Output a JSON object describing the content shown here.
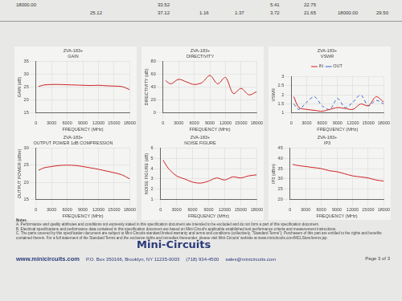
{
  "header_table": {
    "rows": [
      [
        "18000.00",
        null,
        "33.52",
        null,
        null,
        "5.41",
        "22.75",
        null,
        null
      ],
      [
        null,
        "25.12",
        "37.12",
        "1.16",
        "1.37",
        "3.72",
        "21.65",
        "18000.00",
        "29.50"
      ]
    ]
  },
  "chart_data": [
    {
      "type": "line",
      "title": "ZVA-183+",
      "subtitle": "GAIN",
      "x_label": "FREQUENCY (MHz)",
      "y_label": "GAIN (dB)",
      "x": [
        500,
        1500,
        3000,
        4500,
        6000,
        7500,
        9000,
        10500,
        12000,
        13500,
        15000,
        16500,
        18000
      ],
      "values": [
        25.2,
        25.8,
        26.0,
        26.0,
        25.9,
        25.8,
        25.7,
        25.6,
        25.7,
        25.5,
        25.4,
        25.2,
        24.0
      ],
      "color": "#cc2222",
      "xlim": [
        0,
        18000
      ],
      "xticks": [
        0,
        3000,
        6000,
        9000,
        12000,
        15000,
        18000
      ],
      "ylim": [
        15,
        35
      ],
      "yticks": [
        15,
        20,
        25,
        30,
        35
      ],
      "grid": true
    },
    {
      "type": "line",
      "title": "ZVA-183+",
      "subtitle": "DIRECTIVITY",
      "x_label": "FREQUENCY (MHz)",
      "y_label": "DIRECTIVITY (dB)",
      "x": [
        500,
        1500,
        3000,
        4500,
        6000,
        7500,
        9000,
        10500,
        12000,
        13500,
        15000,
        16500,
        18000
      ],
      "values": [
        50,
        45,
        52,
        48,
        44,
        47,
        58,
        45,
        55,
        30,
        38,
        28,
        33
      ],
      "color": "#cc2222",
      "xlim": [
        0,
        18000
      ],
      "xticks": [
        0,
        3000,
        6000,
        9000,
        12000,
        15000,
        18000
      ],
      "ylim": [
        0,
        80
      ],
      "yticks": [
        0,
        20,
        40,
        60,
        80
      ],
      "grid": true
    },
    {
      "type": "line",
      "title": "ZVA-183+",
      "subtitle": "VSWR",
      "x_label": "FREQUENCY (MHz)",
      "y_label": "VSWR",
      "x": [
        500,
        1500,
        3000,
        4500,
        6000,
        7500,
        9000,
        10500,
        12000,
        13500,
        15000,
        16500,
        18000
      ],
      "series": [
        {
          "name": "IN",
          "color": "#cc2222",
          "line_style": "solid",
          "values": [
            1.9,
            1.3,
            1.2,
            1.15,
            1.1,
            1.2,
            1.3,
            1.25,
            1.2,
            1.5,
            1.4,
            1.9,
            1.6
          ]
        },
        {
          "name": "OUT",
          "color": "#3366cc",
          "line_style": "dashed",
          "values": [
            1.5,
            1.2,
            1.6,
            1.9,
            1.4,
            1.2,
            1.8,
            1.3,
            1.6,
            2.0,
            1.4,
            1.7,
            1.5
          ]
        }
      ],
      "legend": "top",
      "xlim": [
        0,
        18000
      ],
      "xticks": [
        0,
        3000,
        6000,
        9000,
        12000,
        15000,
        18000
      ],
      "ylim": [
        1,
        3
      ],
      "yticks": [
        1,
        1.5,
        2,
        2.5,
        3
      ],
      "grid": true
    },
    {
      "type": "line",
      "title": "ZVA-183+",
      "subtitle": "OUTPUT POWER 1dB COMPRESSION",
      "x_label": "FREQUENCY (MHz)",
      "y_label": "OUTPUT POWER (dBm)",
      "x": [
        500,
        1500,
        3000,
        4500,
        6000,
        7500,
        9000,
        10500,
        12000,
        13500,
        15000,
        16500,
        18000
      ],
      "values": [
        23.5,
        24.2,
        24.6,
        24.9,
        25.0,
        24.9,
        24.6,
        24.2,
        23.8,
        23.3,
        22.8,
        22.2,
        21.0
      ],
      "color": "#cc2222",
      "xlim": [
        0,
        18000
      ],
      "xticks": [
        0,
        3000,
        6000,
        9000,
        12000,
        15000,
        18000
      ],
      "ylim": [
        15,
        30
      ],
      "yticks": [
        15,
        20,
        25,
        30
      ],
      "grid": true
    },
    {
      "type": "line",
      "title": "ZVA-183+",
      "subtitle": "NOISE FIGURE",
      "x_label": "FREQUENCY (MHz)",
      "y_label": "NOISE FIGURE (dB)",
      "x": [
        500,
        1500,
        3000,
        4500,
        6000,
        7500,
        9000,
        10500,
        12000,
        13500,
        15000,
        16500,
        18000
      ],
      "values": [
        4.8,
        4.0,
        3.3,
        3.0,
        2.7,
        2.6,
        2.8,
        3.1,
        2.9,
        3.2,
        3.1,
        3.3,
        3.4
      ],
      "color": "#cc2222",
      "xlim": [
        0,
        18000
      ],
      "xticks": [
        0,
        3000,
        6000,
        9000,
        12000,
        15000,
        18000
      ],
      "ylim": [
        1,
        6
      ],
      "yticks": [
        1,
        2,
        3,
        4,
        5,
        6
      ],
      "grid": true
    },
    {
      "type": "line",
      "title": "ZVA-183+",
      "subtitle": "IP3",
      "x_label": "FREQUENCY (MHz)",
      "y_label": "IP3 (dBm)",
      "x": [
        500,
        1500,
        3000,
        4500,
        6000,
        7500,
        9000,
        10500,
        12000,
        13500,
        15000,
        16500,
        18000
      ],
      "values": [
        37,
        36.5,
        36,
        35.5,
        35,
        34,
        33.5,
        32.5,
        31.5,
        31,
        30.5,
        29.5,
        29
      ],
      "color": "#cc2222",
      "xlim": [
        0,
        18000
      ],
      "xticks": [
        0,
        3000,
        6000,
        9000,
        12000,
        15000,
        18000
      ],
      "ylim": [
        20,
        45
      ],
      "yticks": [
        20,
        25,
        30,
        35,
        40,
        45
      ],
      "grid": true
    }
  ],
  "notes": {
    "title": "Notes",
    "items": [
      "A. Performance and quality attributes and conditions not expressly stated in this specification document are intended to be excluded and do not form a part of this specification document.",
      "B. Electrical specifications and performance data contained in this specification document are based on Mini-Circuit's applicable established test performance criteria and measurement instructions.",
      "C. The parts covered by this specification document are subject to Mini-Circuits standard limited warranty and terms and conditions (collectively, \"Standard Terms\"); Purchasers of this part are entitled to the rights and benefits contained therein. For a full statement of the Standard Terms and the exclusive rights and remedies thereunder, please visit Mini-Circuits' website at www.minicircuits.com/MCLStore/terms.jsp"
    ]
  },
  "logo": "Mini-Circuits",
  "footer": {
    "url": "www.minicircuits.com",
    "address": "P.O. Box 350166, Brooklyn, NY 11235-0003",
    "phone": "(718) 934-4500",
    "email": "sales@minicircuits.com",
    "page": "Page 3 of 3"
  }
}
